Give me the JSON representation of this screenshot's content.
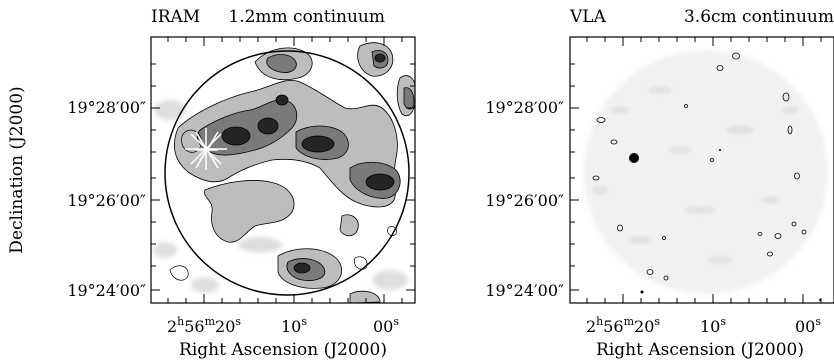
{
  "figure": {
    "y_axis_label": "Declination (J2000)",
    "panels": [
      {
        "title_left": "IRAM",
        "title_right": "1.2mm continuum",
        "x_axis_label": "Right Ascension (J2000)",
        "x_ticks": [
          {
            "h": "2",
            "h_unit": "h",
            "m": "56",
            "m_unit": "m",
            "s": "20",
            "s_unit": "s"
          },
          {
            "s": "10",
            "s_unit": "s"
          },
          {
            "s": "00",
            "s_unit": "s"
          }
        ],
        "y_ticks": [
          "19°28′00″",
          "19°26′00″",
          "19°24′00″"
        ]
      },
      {
        "title_left": "VLA",
        "title_right": "3.6cm continuum",
        "x_axis_label": "Right Ascension (J2000)",
        "x_ticks": [
          {
            "h": "2",
            "h_unit": "h",
            "m": "56",
            "m_unit": "m",
            "s": "20",
            "s_unit": "s"
          },
          {
            "s": "10",
            "s_unit": "s"
          },
          {
            "s": "00",
            "s_unit": "s"
          }
        ],
        "y_ticks": [
          "19°28′00″",
          "19°26′00″",
          "19°24′00″"
        ]
      }
    ]
  }
}
